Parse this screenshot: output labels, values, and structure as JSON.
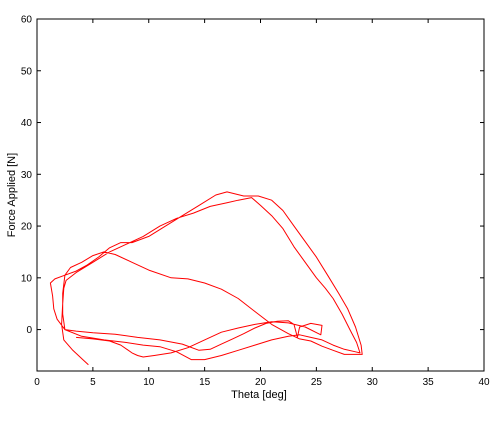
{
  "chart_data": {
    "type": "line",
    "xlabel": "Theta [deg]",
    "ylabel": "Force Applied [N]",
    "xlim": [
      0,
      40
    ],
    "ylim": [
      -8,
      60
    ],
    "xticks": [
      0,
      5,
      10,
      15,
      20,
      25,
      30,
      35,
      40
    ],
    "yticks": [
      0,
      10,
      20,
      30,
      40,
      50,
      60
    ],
    "grid": false,
    "line_color": "#ff0000",
    "series": [
      {
        "values": [
          {
            "x": 4.6,
            "y": -6.8
          },
          {
            "x": 4.2,
            "y": -6.0
          },
          {
            "x": 3.2,
            "y": -4.0
          },
          {
            "x": 2.4,
            "y": -2.0
          },
          {
            "x": 2.2,
            "y": 1.0
          },
          {
            "x": 2.3,
            "y": 5.0
          },
          {
            "x": 2.4,
            "y": 8.0
          },
          {
            "x": 2.6,
            "y": 9.5
          },
          {
            "x": 3.5,
            "y": 11.0
          },
          {
            "x": 5.0,
            "y": 13.0
          },
          {
            "x": 6.5,
            "y": 15.0
          },
          {
            "x": 8.0,
            "y": 16.5
          },
          {
            "x": 9.5,
            "y": 18.0
          },
          {
            "x": 11.0,
            "y": 20.0
          },
          {
            "x": 12.5,
            "y": 21.5
          },
          {
            "x": 14.0,
            "y": 22.5
          },
          {
            "x": 15.5,
            "y": 23.8
          },
          {
            "x": 17.0,
            "y": 24.5
          },
          {
            "x": 18.0,
            "y": 25.0
          },
          {
            "x": 19.2,
            "y": 25.5
          },
          {
            "x": 20.0,
            "y": 24.0
          },
          {
            "x": 21.0,
            "y": 22.0
          },
          {
            "x": 22.0,
            "y": 19.5
          },
          {
            "x": 23.0,
            "y": 16.0
          },
          {
            "x": 24.0,
            "y": 13.0
          },
          {
            "x": 25.0,
            "y": 10.0
          },
          {
            "x": 25.8,
            "y": 8.0
          },
          {
            "x": 26.5,
            "y": 6.0
          },
          {
            "x": 27.3,
            "y": 3.0
          },
          {
            "x": 28.0,
            "y": 0.0
          },
          {
            "x": 28.6,
            "y": -2.5
          },
          {
            "x": 28.9,
            "y": -4.5
          },
          {
            "x": 28.5,
            "y": -4.3
          },
          {
            "x": 27.5,
            "y": -3.8
          },
          {
            "x": 26.5,
            "y": -3.0
          },
          {
            "x": 25.5,
            "y": -2.0
          },
          {
            "x": 24.5,
            "y": -1.5
          },
          {
            "x": 23.5,
            "y": -1.0
          },
          {
            "x": 22.5,
            "y": -1.3
          },
          {
            "x": 21.0,
            "y": -2.0
          },
          {
            "x": 19.5,
            "y": -3.0
          },
          {
            "x": 18.0,
            "y": -4.0
          },
          {
            "x": 16.5,
            "y": -5.0
          },
          {
            "x": 15.0,
            "y": -5.8
          },
          {
            "x": 13.8,
            "y": -5.8
          },
          {
            "x": 12.5,
            "y": -4.3
          },
          {
            "x": 11.0,
            "y": -3.3
          },
          {
            "x": 9.5,
            "y": -3.0
          },
          {
            "x": 8.0,
            "y": -2.5
          },
          {
            "x": 6.0,
            "y": -2.0
          },
          {
            "x": 4.0,
            "y": -1.3
          },
          {
            "x": 2.5,
            "y": 0.0
          },
          {
            "x": 1.8,
            "y": 2.0
          },
          {
            "x": 1.5,
            "y": 4.0
          },
          {
            "x": 1.4,
            "y": 6.5
          },
          {
            "x": 1.2,
            "y": 9.0
          },
          {
            "x": 1.6,
            "y": 9.8
          },
          {
            "x": 2.5,
            "y": 10.5
          },
          {
            "x": 3.5,
            "y": 11.3
          },
          {
            "x": 4.5,
            "y": 12.5
          },
          {
            "x": 5.5,
            "y": 14.0
          },
          {
            "x": 6.5,
            "y": 15.8
          },
          {
            "x": 7.5,
            "y": 16.8
          },
          {
            "x": 8.5,
            "y": 16.8
          },
          {
            "x": 10.0,
            "y": 18.0
          },
          {
            "x": 11.5,
            "y": 20.0
          },
          {
            "x": 13.0,
            "y": 22.0
          },
          {
            "x": 14.5,
            "y": 24.0
          },
          {
            "x": 16.0,
            "y": 26.0
          },
          {
            "x": 17.0,
            "y": 26.6
          },
          {
            "x": 18.5,
            "y": 25.8
          },
          {
            "x": 19.8,
            "y": 25.8
          },
          {
            "x": 21.0,
            "y": 25.0
          },
          {
            "x": 22.0,
            "y": 23.0
          },
          {
            "x": 23.0,
            "y": 20.0
          },
          {
            "x": 24.0,
            "y": 17.0
          },
          {
            "x": 25.0,
            "y": 14.0
          },
          {
            "x": 26.0,
            "y": 10.5
          },
          {
            "x": 27.0,
            "y": 7.0
          },
          {
            "x": 27.8,
            "y": 4.0
          },
          {
            "x": 28.5,
            "y": 0.5
          },
          {
            "x": 29.0,
            "y": -3.0
          },
          {
            "x": 29.1,
            "y": -4.8
          },
          {
            "x": 27.5,
            "y": -4.8
          },
          {
            "x": 26.5,
            "y": -4.0
          },
          {
            "x": 25.5,
            "y": -3.2
          },
          {
            "x": 24.5,
            "y": -2.2
          },
          {
            "x": 23.5,
            "y": -1.8
          },
          {
            "x": 22.5,
            "y": -0.8
          },
          {
            "x": 21.0,
            "y": 1.0
          },
          {
            "x": 19.5,
            "y": 3.5
          },
          {
            "x": 18.0,
            "y": 6.0
          },
          {
            "x": 16.5,
            "y": 7.8
          },
          {
            "x": 15.0,
            "y": 9.0
          },
          {
            "x": 13.5,
            "y": 9.8
          },
          {
            "x": 12.0,
            "y": 10.0
          },
          {
            "x": 10.0,
            "y": 11.5
          },
          {
            "x": 8.5,
            "y": 13.0
          },
          {
            "x": 7.0,
            "y": 14.5
          },
          {
            "x": 6.0,
            "y": 15.0
          },
          {
            "x": 5.0,
            "y": 14.3
          },
          {
            "x": 4.0,
            "y": 13.0
          },
          {
            "x": 3.0,
            "y": 12.0
          },
          {
            "x": 2.5,
            "y": 10.5
          },
          {
            "x": 2.3,
            "y": 7.0
          },
          {
            "x": 2.3,
            "y": 3.0
          },
          {
            "x": 2.5,
            "y": 0.0
          },
          {
            "x": 3.5,
            "y": -0.3
          },
          {
            "x": 5.0,
            "y": -0.6
          },
          {
            "x": 7.0,
            "y": -0.9
          },
          {
            "x": 9.0,
            "y": -1.5
          },
          {
            "x": 11.0,
            "y": -2.0
          },
          {
            "x": 13.0,
            "y": -2.8
          },
          {
            "x": 14.5,
            "y": -4.0
          },
          {
            "x": 15.5,
            "y": -3.8
          },
          {
            "x": 16.5,
            "y": -2.8
          },
          {
            "x": 17.5,
            "y": -1.8
          },
          {
            "x": 18.5,
            "y": -0.8
          },
          {
            "x": 19.5,
            "y": 0.3
          },
          {
            "x": 20.5,
            "y": 1.2
          },
          {
            "x": 21.5,
            "y": 1.6
          },
          {
            "x": 22.5,
            "y": 1.7
          },
          {
            "x": 23.0,
            "y": 1.0
          },
          {
            "x": 23.3,
            "y": -1.5
          },
          {
            "x": 23.5,
            "y": 0.5
          },
          {
            "x": 24.5,
            "y": 1.2
          },
          {
            "x": 25.5,
            "y": 0.8
          },
          {
            "x": 25.4,
            "y": -1.0
          },
          {
            "x": 24.0,
            "y": 0.5
          },
          {
            "x": 22.5,
            "y": 1.3
          },
          {
            "x": 21.0,
            "y": 1.5
          },
          {
            "x": 19.5,
            "y": 1.0
          },
          {
            "x": 18.0,
            "y": 0.3
          },
          {
            "x": 16.5,
            "y": -0.5
          },
          {
            "x": 15.0,
            "y": -2.0
          },
          {
            "x": 13.5,
            "y": -3.5
          },
          {
            "x": 12.0,
            "y": -4.5
          },
          {
            "x": 10.5,
            "y": -5.0
          },
          {
            "x": 9.5,
            "y": -5.3
          },
          {
            "x": 9.0,
            "y": -5.0
          },
          {
            "x": 8.5,
            "y": -4.5
          },
          {
            "x": 7.5,
            "y": -3.0
          },
          {
            "x": 6.5,
            "y": -2.2
          },
          {
            "x": 5.0,
            "y": -1.8
          },
          {
            "x": 3.5,
            "y": -1.5
          }
        ]
      }
    ]
  }
}
